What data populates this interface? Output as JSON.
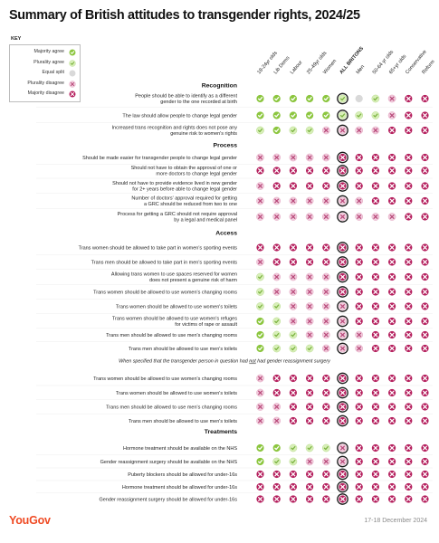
{
  "title": "Summary of British attitudes to transgender rights, 2024/25",
  "key": {
    "heading": "KEY",
    "items": [
      {
        "label": "Majority agree",
        "code": "MA"
      },
      {
        "label": "Plurality agree",
        "code": "PA"
      },
      {
        "label": "Equal split",
        "code": "EQ"
      },
      {
        "label": "Plurality disagree",
        "code": "PD"
      },
      {
        "label": "Majority disagree",
        "code": "MD"
      }
    ]
  },
  "colors": {
    "majority_agree": "#8cc63f",
    "plurality_agree_fill": "#d8efb8",
    "plurality_agree_mark": "#7cb342",
    "equal_split": "#d9d9d9",
    "plurality_disagree_fill": "#f1cbdc",
    "plurality_disagree_mark": "#b84a7a",
    "majority_disagree": "#b5205e",
    "emphasis_ring": "#1a1a1a"
  },
  "chart_data": {
    "type": "table",
    "title": "Summary of British attitudes to transgender rights, 2024/25",
    "columns": [
      "18-24yr olds",
      "Lib Dems",
      "Labour",
      "25-49yr olds",
      "Women",
      "ALL BRITONS",
      "Men",
      "50-64 yr olds",
      "65+yr olds",
      "Conservative",
      "Reform"
    ],
    "highlight_column": "ALL BRITONS",
    "sections": [
      {
        "heading": "Recognition",
        "rows": [
          {
            "label": [
              "People should be able to identify as a different",
              "gender to the one recorded at birth"
            ],
            "values": [
              "MA",
              "MA",
              "MA",
              "MA",
              "MA",
              "PA",
              "EQ",
              "PA",
              "PD",
              "MD",
              "MD"
            ]
          },
          {
            "label": [
              "The law should allow people to change legal gender"
            ],
            "values": [
              "MA",
              "MA",
              "MA",
              "MA",
              "MA",
              "PA",
              "PA",
              "PA",
              "PD",
              "MD",
              "MD"
            ]
          },
          {
            "label": [
              "Increased trans recognition and rights does not pose any",
              "genuine risk to women's rights"
            ],
            "values": [
              "PA",
              "MA",
              "PA",
              "PA",
              "PD",
              "PD",
              "PD",
              "PD",
              "MD",
              "MD",
              "MD"
            ]
          }
        ]
      },
      {
        "heading": "Process",
        "rows": [
          {
            "label": [
              "Should be made easier for transgender people to change legal gender"
            ],
            "values": [
              "PD",
              "PD",
              "PD",
              "PD",
              "PD",
              "MD",
              "MD",
              "MD",
              "MD",
              "MD",
              "MD"
            ]
          },
          {
            "label": [
              "Should not have to obtain the approval of one or",
              "more doctors to change legal gender"
            ],
            "values": [
              "MD",
              "MD",
              "MD",
              "MD",
              "MD",
              "MD",
              "MD",
              "MD",
              "MD",
              "MD",
              "MD"
            ]
          },
          {
            "label": [
              "Should not have to provide evidence lived in new gender",
              "for 2+ years before able to change legal gender"
            ],
            "values": [
              "PD",
              "MD",
              "MD",
              "MD",
              "MD",
              "MD",
              "MD",
              "MD",
              "MD",
              "MD",
              "MD"
            ]
          },
          {
            "label": [
              "Number of doctors' approval required for getting",
              "a GRC should be reduced from two to one"
            ],
            "values": [
              "PD",
              "PD",
              "PD",
              "PD",
              "PD",
              "PD",
              "PD",
              "MD",
              "MD",
              "MD",
              "MD"
            ]
          },
          {
            "label": [
              "Process for getting a GRC should not require approval",
              "by a legal and medical panel"
            ],
            "values": [
              "PD",
              "PD",
              "PD",
              "PD",
              "PD",
              "PD",
              "PD",
              "PD",
              "PD",
              "MD",
              "MD"
            ]
          }
        ]
      },
      {
        "heading": "Access",
        "rows": [
          {
            "label": [
              "Trans women should be allowed to take part in women's sporting events"
            ],
            "values": [
              "MD",
              "MD",
              "MD",
              "MD",
              "MD",
              "MD",
              "MD",
              "MD",
              "MD",
              "MD",
              "MD"
            ]
          },
          {
            "label": [
              "Trans men should be allowed to take part in men's sporting events"
            ],
            "values": [
              "PD",
              "MD",
              "MD",
              "MD",
              "MD",
              "MD",
              "MD",
              "MD",
              "MD",
              "MD",
              "MD"
            ]
          },
          {
            "label": [
              "Allowing trans women to use spaces reserved for women",
              "does not present a genuine risk of harm"
            ],
            "values": [
              "PA",
              "PD",
              "PD",
              "PD",
              "PD",
              "MD",
              "MD",
              "MD",
              "MD",
              "MD",
              "MD"
            ]
          },
          {
            "label": [
              "Trans women should be allowed to use women's changing rooms"
            ],
            "values": [
              "PA",
              "PD",
              "PD",
              "PD",
              "PD",
              "MD",
              "MD",
              "MD",
              "MD",
              "MD",
              "MD"
            ]
          },
          {
            "label": [
              "Trans women should be allowed to use women's toilets"
            ],
            "values": [
              "PA",
              "PA",
              "PD",
              "PD",
              "PD",
              "PD",
              "MD",
              "MD",
              "MD",
              "MD",
              "MD"
            ]
          },
          {
            "label": [
              "Trans women should be allowed to use women's refuges",
              "for victims of rape or assault"
            ],
            "values": [
              "MA",
              "PA",
              "PD",
              "PD",
              "PD",
              "PD",
              "MD",
              "MD",
              "MD",
              "MD",
              "MD"
            ]
          },
          {
            "label": [
              "Trans men should be allowed to use men's changing rooms"
            ],
            "values": [
              "MA",
              "PA",
              "PA",
              "PD",
              "PD",
              "PD",
              "PD",
              "MD",
              "MD",
              "MD",
              "MD"
            ]
          },
          {
            "label": [
              "Trans men should be allowed to use men's toilets"
            ],
            "values": [
              "MA",
              "PA",
              "PA",
              "PA",
              "PD",
              "PD",
              "PD",
              "MD",
              "MD",
              "MD",
              "MD"
            ]
          }
        ]
      },
      {
        "heading": "",
        "note": [
          "When specified that the transgender person in question had ",
          "not",
          " had gender reassignment surgery"
        ],
        "rows": [
          {
            "label": [
              "Trans women should be allowed to use women's changing rooms"
            ],
            "values": [
              "PD",
              "MD",
              "MD",
              "MD",
              "MD",
              "MD",
              "MD",
              "MD",
              "MD",
              "MD",
              "MD"
            ]
          },
          {
            "label": [
              "Trans women should be allowed to use women's toilets"
            ],
            "values": [
              "PD",
              "MD",
              "MD",
              "MD",
              "MD",
              "MD",
              "MD",
              "MD",
              "MD",
              "MD",
              "MD"
            ]
          },
          {
            "label": [
              "Trans men should be allowed to use men's changing rooms"
            ],
            "values": [
              "PD",
              "PD",
              "MD",
              "MD",
              "MD",
              "MD",
              "MD",
              "MD",
              "MD",
              "MD",
              "MD"
            ]
          },
          {
            "label": [
              "Trans men should be allowed to use men's toilets"
            ],
            "values": [
              "PD",
              "PD",
              "MD",
              "MD",
              "MD",
              "MD",
              "MD",
              "MD",
              "MD",
              "MD",
              "MD"
            ]
          }
        ]
      },
      {
        "heading": "Treatments",
        "rows": [
          {
            "label": [
              "Hormone treatment should be available on the NHS"
            ],
            "values": [
              "MA",
              "MA",
              "PA",
              "PA",
              "PA",
              "PD",
              "MD",
              "MD",
              "MD",
              "MD",
              "MD"
            ]
          },
          {
            "label": [
              "Gender reassignment surgery should be available on the NHS"
            ],
            "values": [
              "MA",
              "PA",
              "PA",
              "PD",
              "PD",
              "PD",
              "MD",
              "MD",
              "MD",
              "MD",
              "MD"
            ]
          },
          {
            "label": [
              "Puberty blockers should be allowed for under-16s"
            ],
            "values": [
              "MD",
              "MD",
              "MD",
              "MD",
              "MD",
              "MD",
              "MD",
              "MD",
              "MD",
              "MD",
              "MD"
            ]
          },
          {
            "label": [
              "Hormone treatment should be allowed for under-16s"
            ],
            "values": [
              "MD",
              "MD",
              "MD",
              "MD",
              "MD",
              "MD",
              "MD",
              "MD",
              "MD",
              "MD",
              "MD"
            ]
          },
          {
            "label": [
              "Gender reassignment surgery should be allowed for under-16s"
            ],
            "values": [
              "MD",
              "MD",
              "MD",
              "MD",
              "MD",
              "MD",
              "MD",
              "MD",
              "MD",
              "MD",
              "MD"
            ]
          }
        ]
      }
    ]
  },
  "footer": {
    "logo": "YouGov",
    "date": "17-18 December 2024"
  }
}
